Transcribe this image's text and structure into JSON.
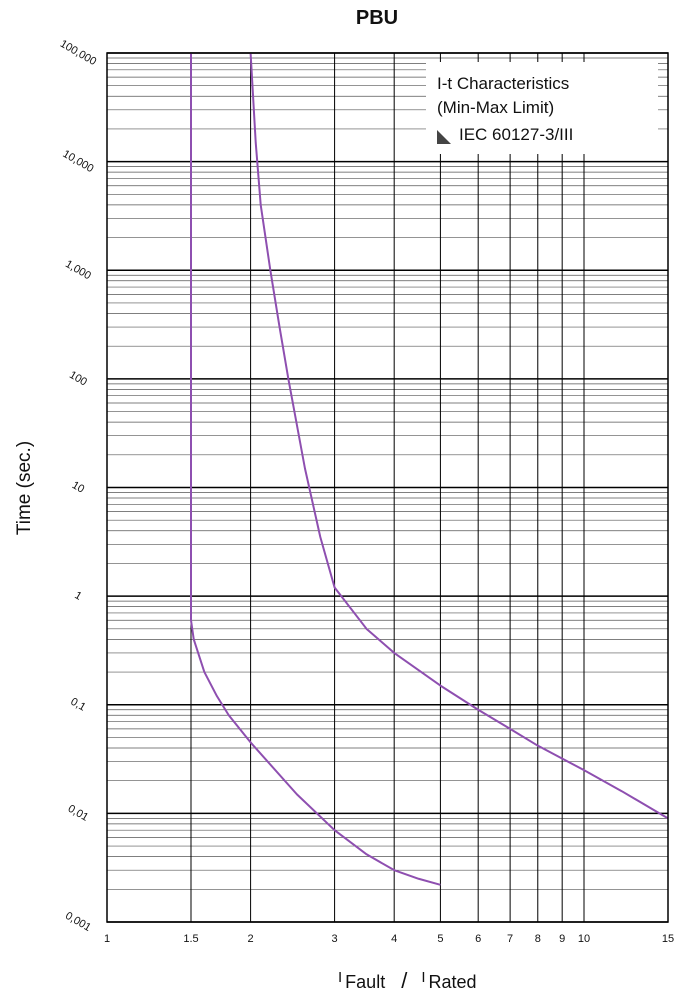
{
  "chart_data": {
    "type": "line",
    "title": "PBU",
    "ylabel": "Time (sec.)",
    "xlabel": [
      "I",
      "Fault",
      "/",
      "I",
      "Rated"
    ],
    "annotations": [
      "I-t Characteristics",
      "(Min-Max Limit)",
      "IEC 60127-3/III"
    ],
    "xscale": "log",
    "yscale": "log",
    "grid": true,
    "minor_grid": true,
    "xlim": [
      1,
      15
    ],
    "ylim": [
      0.001,
      100000
    ],
    "xticks": [
      1,
      1.5,
      2,
      3,
      4,
      5,
      6,
      7,
      8,
      9,
      10,
      15
    ],
    "yticks": [
      {
        "value": 0.001,
        "label": "0,001"
      },
      {
        "value": 0.01,
        "label": "0,01"
      },
      {
        "value": 0.1,
        "label": "0,1"
      },
      1,
      10,
      100,
      {
        "value": 1000,
        "label": "1,000"
      },
      {
        "value": 10000,
        "label": "10,000"
      },
      {
        "value": 100000,
        "label": "100,000"
      }
    ],
    "series": [
      {
        "color": "#8e4fb0",
        "x": [
          1.5,
          1.5,
          1.5,
          1.52,
          1.6,
          1.7,
          1.8,
          2,
          2.5,
          3,
          3.5,
          4,
          4.5,
          5
        ],
        "values": [
          100000,
          1,
          0.6,
          0.4,
          0.2,
          0.12,
          0.08,
          0.045,
          0.015,
          0.007,
          0.0042,
          0.003,
          0.0025,
          0.0022
        ]
      },
      {
        "color": "#8e4fb0",
        "x": [
          2,
          2.05,
          2.1,
          2.2,
          2.3,
          2.4,
          2.6,
          2.8,
          3,
          3.5,
          4,
          5,
          6,
          7,
          8,
          10,
          12,
          15
        ],
        "values": [
          100000,
          15000,
          4000,
          1000,
          300,
          100,
          15,
          3.5,
          1.2,
          0.5,
          0.3,
          0.15,
          0.09,
          0.06,
          0.042,
          0.025,
          0.016,
          0.009
        ]
      }
    ]
  }
}
